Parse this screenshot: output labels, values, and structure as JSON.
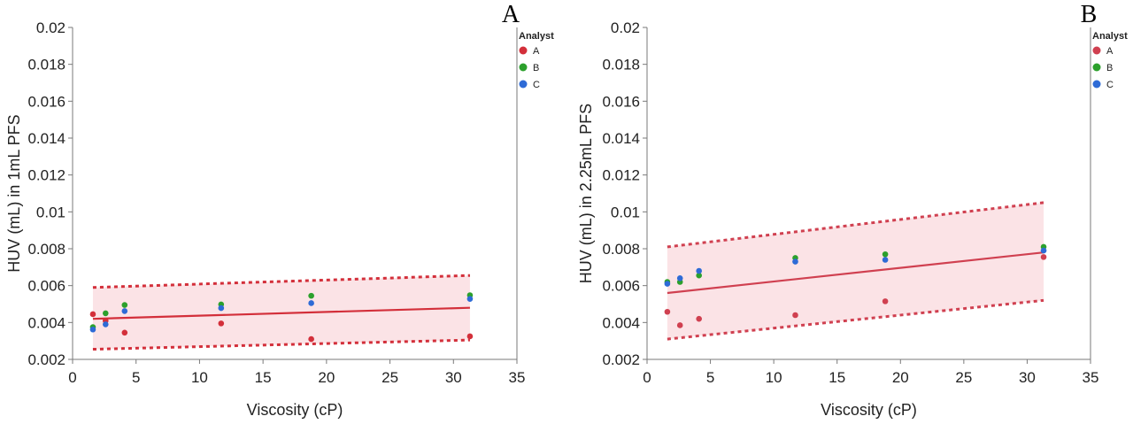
{
  "chart_data": [
    {
      "type": "scatter",
      "panel_label": "A",
      "xlabel": "Viscosity (cP)",
      "ylabel": "HUV (mL) in 1mL PFS",
      "xlim": [
        0,
        35
      ],
      "ylim": [
        0.002,
        0.02
      ],
      "x_ticks": [
        0,
        5,
        10,
        15,
        20,
        25,
        30,
        35
      ],
      "y_ticks": [
        0.002,
        0.004,
        0.006,
        0.008,
        0.01,
        0.012,
        0.014,
        0.016,
        0.018,
        0.02
      ],
      "y_tick_labels": [
        "0.002",
        "0.004",
        "0.006",
        "0.008",
        "0.01",
        "0.012",
        "0.014",
        "0.016",
        "0.018",
        "0.02"
      ],
      "grid": false,
      "legend": {
        "title": "Analyst",
        "position": "top-right"
      },
      "series": [
        {
          "name": "A",
          "color": "#d32f3a",
          "x": [
            1.6,
            2.6,
            4.1,
            11.7,
            18.8,
            31.3
          ],
          "y": [
            0.00445,
            0.0041,
            0.00345,
            0.00395,
            0.0031,
            0.00325
          ]
        },
        {
          "name": "B",
          "color": "#2ca02c",
          "x": [
            1.6,
            2.6,
            4.1,
            11.7,
            18.8,
            31.3
          ],
          "y": [
            0.00375,
            0.0045,
            0.00495,
            0.00498,
            0.00545,
            0.00548
          ]
        },
        {
          "name": "C",
          "color": "#2e6bd6",
          "x": [
            1.6,
            2.6,
            4.1,
            11.7,
            18.8,
            31.3
          ],
          "y": [
            0.00362,
            0.0039,
            0.00462,
            0.00478,
            0.00505,
            0.00528
          ]
        }
      ],
      "fit": {
        "x": [
          1.6,
          31.3
        ],
        "y": [
          0.0042,
          0.0048
        ],
        "color": "#d32f3a"
      },
      "band": {
        "x": [
          1.6,
          31.3
        ],
        "upper": [
          0.0059,
          0.00655
        ],
        "lower": [
          0.00255,
          0.00305
        ],
        "fill": "#fbe3e6"
      }
    },
    {
      "type": "scatter",
      "panel_label": "B",
      "xlabel": "Viscosity (cP)",
      "ylabel": "HUV (mL) in 2.25mL PFS",
      "xlim": [
        0,
        35
      ],
      "ylim": [
        0.002,
        0.02
      ],
      "x_ticks": [
        0,
        5,
        10,
        15,
        20,
        25,
        30,
        35
      ],
      "y_ticks": [
        0.002,
        0.004,
        0.006,
        0.008,
        0.01,
        0.012,
        0.014,
        0.016,
        0.018,
        0.02
      ],
      "y_tick_labels": [
        "0.002",
        "0.004",
        "0.006",
        "0.008",
        "0.01",
        "0.012",
        "0.014",
        "0.016",
        "0.018",
        "0.02"
      ],
      "grid": false,
      "legend": {
        "title": "Analyst",
        "position": "top-right"
      },
      "series": [
        {
          "name": "A",
          "color": "#d04050",
          "x": [
            1.6,
            2.6,
            4.1,
            11.7,
            18.8,
            31.3
          ],
          "y": [
            0.00458,
            0.00385,
            0.0042,
            0.0044,
            0.00515,
            0.00755
          ]
        },
        {
          "name": "B",
          "color": "#2ca02c",
          "x": [
            1.6,
            2.6,
            4.1,
            11.7,
            18.8,
            31.3
          ],
          "y": [
            0.0062,
            0.0062,
            0.00655,
            0.0075,
            0.0077,
            0.0081
          ]
        },
        {
          "name": "C",
          "color": "#2e6bd6",
          "x": [
            1.6,
            2.6,
            4.1,
            11.7,
            18.8,
            31.3
          ],
          "y": [
            0.0061,
            0.0064,
            0.0068,
            0.0073,
            0.0074,
            0.0079
          ]
        }
      ],
      "fit": {
        "x": [
          1.6,
          31.3
        ],
        "y": [
          0.0056,
          0.0078
        ],
        "color": "#d04050"
      },
      "band": {
        "x": [
          1.6,
          31.3
        ],
        "upper": [
          0.0081,
          0.0105
        ],
        "lower": [
          0.0031,
          0.0052
        ],
        "fill": "#fbe3e6"
      }
    }
  ]
}
